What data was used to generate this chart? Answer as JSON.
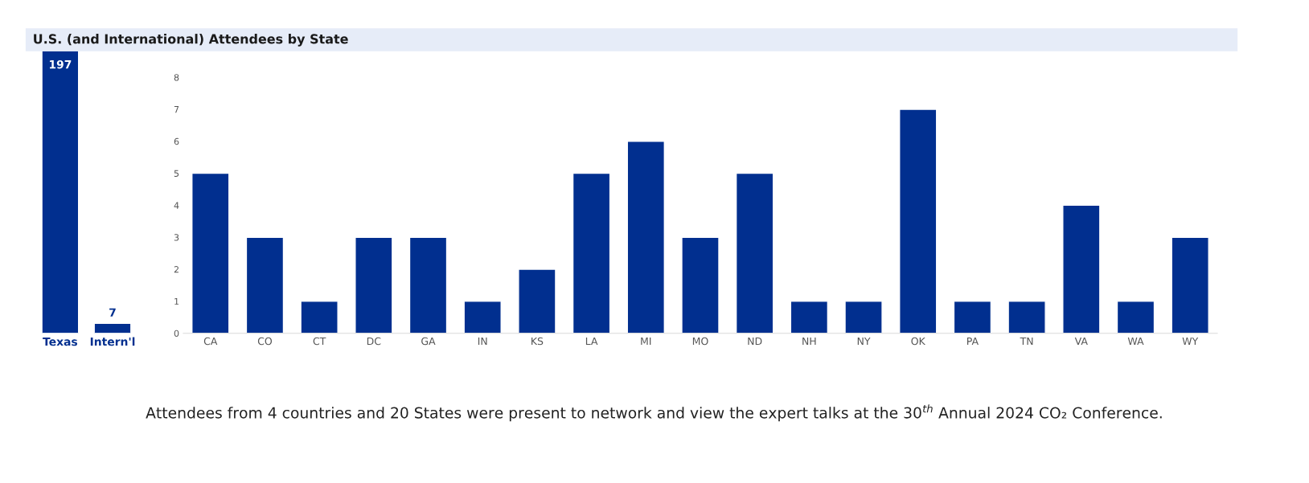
{
  "chart_data": [
    {
      "type": "bar",
      "title": "U.S. (and International) Attendees by State",
      "categories": [
        "Texas",
        "Intern'l"
      ],
      "values": [
        197,
        7
      ],
      "color": "#012f8f",
      "data_labels": true,
      "tick_labels": "x",
      "grid": false
    },
    {
      "type": "bar",
      "categories": [
        "CA",
        "CO",
        "CT",
        "DC",
        "GA",
        "IN",
        "KS",
        "LA",
        "MI",
        "MO",
        "ND",
        "NH",
        "NY",
        "OK",
        "PA",
        "TN",
        "VA",
        "WA",
        "WY"
      ],
      "values": [
        5,
        3,
        1,
        3,
        3,
        1,
        2,
        5,
        6,
        3,
        5,
        1,
        1,
        7,
        1,
        1,
        4,
        1,
        3
      ],
      "color": "#012f8f",
      "ylim": [
        0,
        8
      ],
      "yticks": [
        0,
        1,
        2,
        3,
        4,
        5,
        6,
        7,
        8
      ],
      "grid": false,
      "annotations": [
        "Attendees from 4 countries and 20 States were present to network and view the expert talks at the 30$^{th}$ Annual 2024 CO₂ Conference."
      ]
    }
  ]
}
